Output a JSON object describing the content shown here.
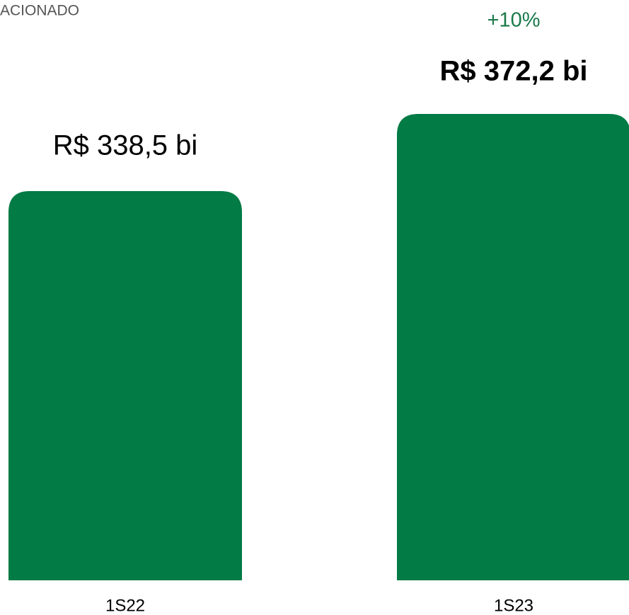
{
  "chart_data": {
    "type": "bar",
    "title": "ACIONADO",
    "categories": [
      "1S22",
      "1S23"
    ],
    "values": [
      338.5,
      372.2
    ],
    "value_labels": [
      "R$ 338,5 bi",
      "R$ 372,2 bi"
    ],
    "annotation": "+10%",
    "color": "#027b45",
    "annotation_color": "#1a7a4a",
    "ylim": [
      168.4,
      372.2
    ]
  }
}
